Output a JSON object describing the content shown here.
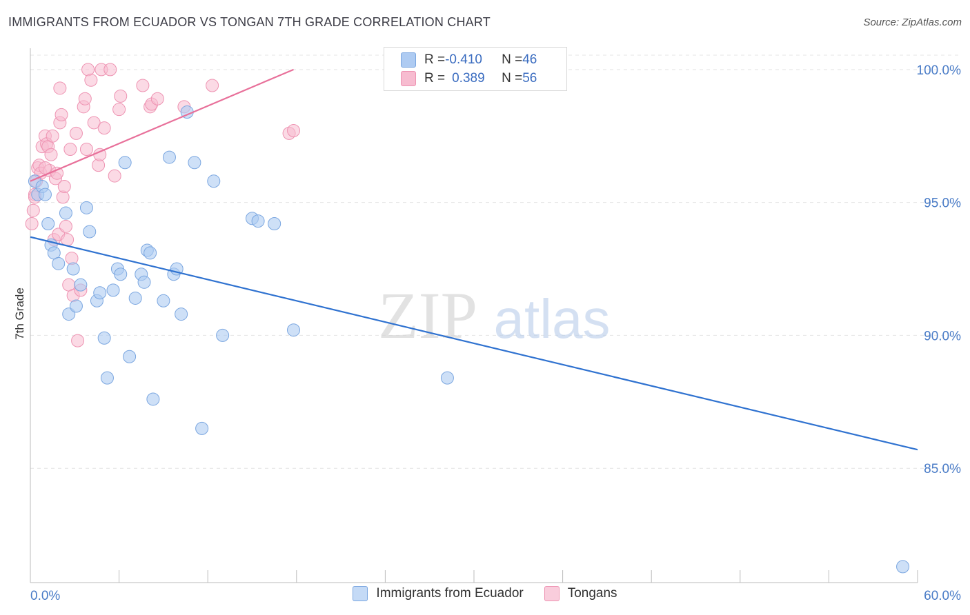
{
  "title": "IMMIGRANTS FROM ECUADOR VS TONGAN 7TH GRADE CORRELATION CHART",
  "source": "Source: ZipAtlas.com",
  "watermark": {
    "zip": "ZIP",
    "atlas": "atlas"
  },
  "legend": {
    "series1": {
      "r_label": "R = ",
      "r_value": "-0.410",
      "n_label": "N = ",
      "n_value": "46"
    },
    "series2": {
      "r_label": "R = ",
      "r_value": "0.389",
      "n_label": "N = ",
      "n_value": "56"
    }
  },
  "colors": {
    "blue_fill": "#aecbf2",
    "blue_stroke": "#7aa6e0",
    "blue_line": "#2f72d0",
    "pink_fill": "#f7bcd0",
    "pink_stroke": "#ee93b2",
    "pink_line": "#e8709a",
    "grid": "#e4e4e4",
    "axis_text": "#4a7cc7"
  },
  "chart_data": {
    "type": "scatter",
    "title": "IMMIGRANTS FROM ECUADOR VS TONGAN 7TH GRADE CORRELATION CHART",
    "xlabel": "",
    "ylabel": "7th Grade",
    "xlim": [
      0,
      60
    ],
    "ylim": [
      80.7,
      100.8
    ],
    "x_tick_labels": [
      "0.0%",
      "60.0%"
    ],
    "y_ticks": [
      85,
      90,
      95,
      100
    ],
    "y_tick_labels": [
      "85.0%",
      "90.0%",
      "95.0%",
      "100.0%"
    ],
    "series": [
      {
        "name": "Immigrants from Ecuador",
        "color": "blue",
        "r": -0.41,
        "n": 46,
        "trend": {
          "x": [
            0,
            60
          ],
          "y": [
            93.7,
            85.7
          ]
        },
        "points": [
          [
            0.3,
            95.8
          ],
          [
            0.5,
            95.3
          ],
          [
            0.8,
            95.6
          ],
          [
            1.0,
            95.3
          ],
          [
            1.2,
            94.2
          ],
          [
            1.4,
            93.4
          ],
          [
            1.6,
            93.1
          ],
          [
            1.9,
            92.7
          ],
          [
            2.4,
            94.6
          ],
          [
            2.6,
            90.8
          ],
          [
            2.9,
            92.5
          ],
          [
            3.1,
            91.1
          ],
          [
            3.4,
            91.9
          ],
          [
            3.8,
            94.8
          ],
          [
            4.0,
            93.9
          ],
          [
            4.5,
            91.3
          ],
          [
            4.7,
            91.6
          ],
          [
            5.0,
            89.9
          ],
          [
            5.2,
            88.4
          ],
          [
            5.6,
            91.7
          ],
          [
            5.9,
            92.5
          ],
          [
            6.1,
            92.3
          ],
          [
            6.4,
            96.5
          ],
          [
            6.7,
            89.2
          ],
          [
            7.1,
            91.4
          ],
          [
            7.5,
            92.3
          ],
          [
            7.7,
            92.0
          ],
          [
            7.9,
            93.2
          ],
          [
            8.1,
            93.1
          ],
          [
            8.3,
            87.6
          ],
          [
            9.0,
            91.3
          ],
          [
            9.4,
            96.7
          ],
          [
            9.7,
            92.3
          ],
          [
            9.9,
            92.5
          ],
          [
            10.2,
            90.8
          ],
          [
            10.6,
            98.4
          ],
          [
            11.1,
            96.5
          ],
          [
            11.6,
            86.5
          ],
          [
            12.4,
            95.8
          ],
          [
            13.0,
            90.0
          ],
          [
            15.0,
            94.4
          ],
          [
            15.4,
            94.3
          ],
          [
            16.5,
            94.2
          ],
          [
            17.8,
            90.2
          ],
          [
            28.2,
            88.4
          ],
          [
            59.0,
            81.3
          ]
        ]
      },
      {
        "name": "Tongans",
        "color": "pink",
        "r": 0.389,
        "n": 56,
        "trend": {
          "x": [
            0,
            17.8
          ],
          "y": [
            95.8,
            100.0
          ]
        },
        "points": [
          [
            0.1,
            94.2
          ],
          [
            0.2,
            94.7
          ],
          [
            0.3,
            95.3
          ],
          [
            0.4,
            95.8
          ],
          [
            0.5,
            96.3
          ],
          [
            0.6,
            96.4
          ],
          [
            0.7,
            96.1
          ],
          [
            0.8,
            97.1
          ],
          [
            1.0,
            97.5
          ],
          [
            1.1,
            97.2
          ],
          [
            1.2,
            97.1
          ],
          [
            1.3,
            96.2
          ],
          [
            1.4,
            96.8
          ],
          [
            1.5,
            97.5
          ],
          [
            1.6,
            93.6
          ],
          [
            1.7,
            95.9
          ],
          [
            1.8,
            96.1
          ],
          [
            1.9,
            93.8
          ],
          [
            2.0,
            98.0
          ],
          [
            2.1,
            98.3
          ],
          [
            2.0,
            99.3
          ],
          [
            2.2,
            95.2
          ],
          [
            2.3,
            95.6
          ],
          [
            2.4,
            94.1
          ],
          [
            2.5,
            93.6
          ],
          [
            2.6,
            91.9
          ],
          [
            2.7,
            97.0
          ],
          [
            2.8,
            92.9
          ],
          [
            2.9,
            91.5
          ],
          [
            3.1,
            97.6
          ],
          [
            3.2,
            89.8
          ],
          [
            3.4,
            91.7
          ],
          [
            3.6,
            98.6
          ],
          [
            3.7,
            98.9
          ],
          [
            3.8,
            97.0
          ],
          [
            3.9,
            100.0
          ],
          [
            4.1,
            99.6
          ],
          [
            4.3,
            98.0
          ],
          [
            4.6,
            96.4
          ],
          [
            4.7,
            96.8
          ],
          [
            4.8,
            100.0
          ],
          [
            5.0,
            97.8
          ],
          [
            5.4,
            100.0
          ],
          [
            5.7,
            96.0
          ],
          [
            6.0,
            98.5
          ],
          [
            6.1,
            99.0
          ],
          [
            7.6,
            99.4
          ],
          [
            8.1,
            98.6
          ],
          [
            8.2,
            98.7
          ],
          [
            8.6,
            98.9
          ],
          [
            10.4,
            98.6
          ],
          [
            12.3,
            99.4
          ],
          [
            17.5,
            97.6
          ],
          [
            17.8,
            97.7
          ],
          [
            0.3,
            95.2
          ],
          [
            1.0,
            96.3
          ]
        ]
      }
    ]
  }
}
